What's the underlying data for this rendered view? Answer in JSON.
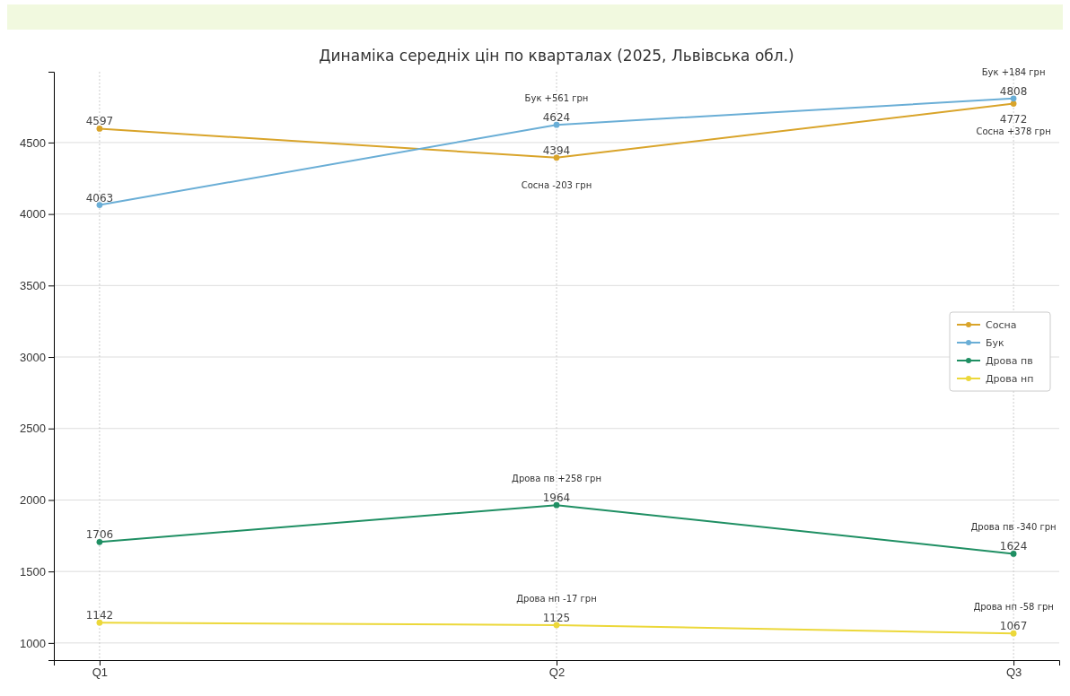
{
  "chart_data": {
    "type": "line",
    "title": "Динаміка середніх цін по кварталах (2025, Львівська обл.)",
    "categories": [
      "Q1",
      "Q2",
      "Q3"
    ],
    "series": [
      {
        "name": "Сосна",
        "color": "#d9a42a",
        "values": [
          4597,
          4394,
          4772
        ]
      },
      {
        "name": "Бук",
        "color": "#6aaed6",
        "values": [
          4063,
          4624,
          4808
        ]
      },
      {
        "name": "Дрова пв",
        "color": "#1f8f63",
        "values": [
          1706,
          1964,
          1624
        ]
      },
      {
        "name": "Дрова нп",
        "color": "#ecd83a",
        "values": [
          1142,
          1125,
          1067
        ]
      }
    ],
    "ylim": [
      880,
      4995
    ],
    "yticks": [
      1000,
      1500,
      2000,
      2500,
      3000,
      3500,
      4000,
      4500
    ],
    "grid": true,
    "legend": "right",
    "marker": "circle",
    "line_style": "solid",
    "data_labels": true,
    "annotations": [
      {
        "text": "Бук +561 грн",
        "x": "Q2",
        "y": 4624
      },
      {
        "text": "Сосна -203 грн",
        "x": "Q2",
        "y": 4394
      },
      {
        "text": "Бук +184 грн",
        "x": "Q3",
        "y": 4808
      },
      {
        "text": "Сосна +378 грн",
        "x": "Q3",
        "y": 4772
      },
      {
        "text": "Дрова пв +258 грн",
        "x": "Q2",
        "y": 1964
      },
      {
        "text": "Дрова пв -340 грн",
        "x": "Q3",
        "y": 1624
      },
      {
        "text": "Дрова нп -17 грн",
        "x": "Q2",
        "y": 1125
      },
      {
        "text": "Дрова нп -58 грн",
        "x": "Q3",
        "y": 1067
      }
    ]
  }
}
